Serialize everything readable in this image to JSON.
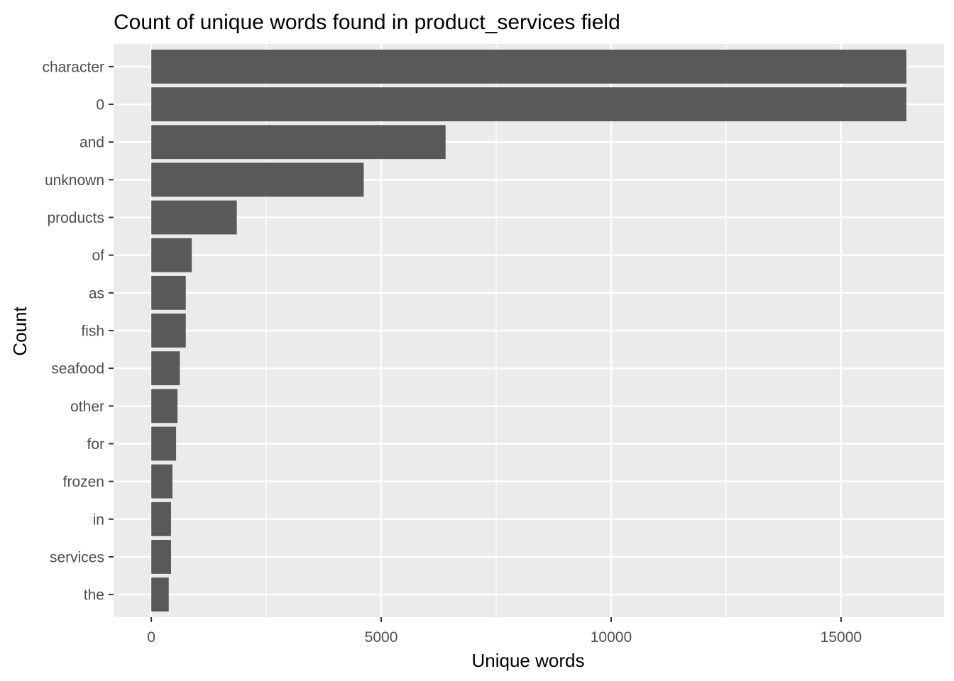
{
  "chart_data": {
    "type": "bar",
    "orientation": "horizontal",
    "title": "Count of unique words found in product_services field",
    "xlabel": "Unique words",
    "ylabel": "Count",
    "categories": [
      "character",
      "0",
      "and",
      "unknown",
      "products",
      "of",
      "as",
      "fish",
      "seafood",
      "other",
      "for",
      "frozen",
      "in",
      "services",
      "the"
    ],
    "values": [
      16420,
      16420,
      6400,
      4620,
      1860,
      880,
      750,
      750,
      620,
      570,
      540,
      460,
      430,
      430,
      380
    ],
    "x_ticks": [
      0,
      5000,
      10000,
      15000
    ],
    "x_tick_labels": [
      "0",
      "5000",
      "10000",
      "15000"
    ],
    "xlim": [
      -820,
      17240
    ],
    "grid": true,
    "legend": "none",
    "colors": {
      "panel": "#ebebeb",
      "grid": "#ffffff",
      "bar": "#595959",
      "tick_text": "#4d4d4d",
      "tick_mark": "#333333"
    }
  }
}
